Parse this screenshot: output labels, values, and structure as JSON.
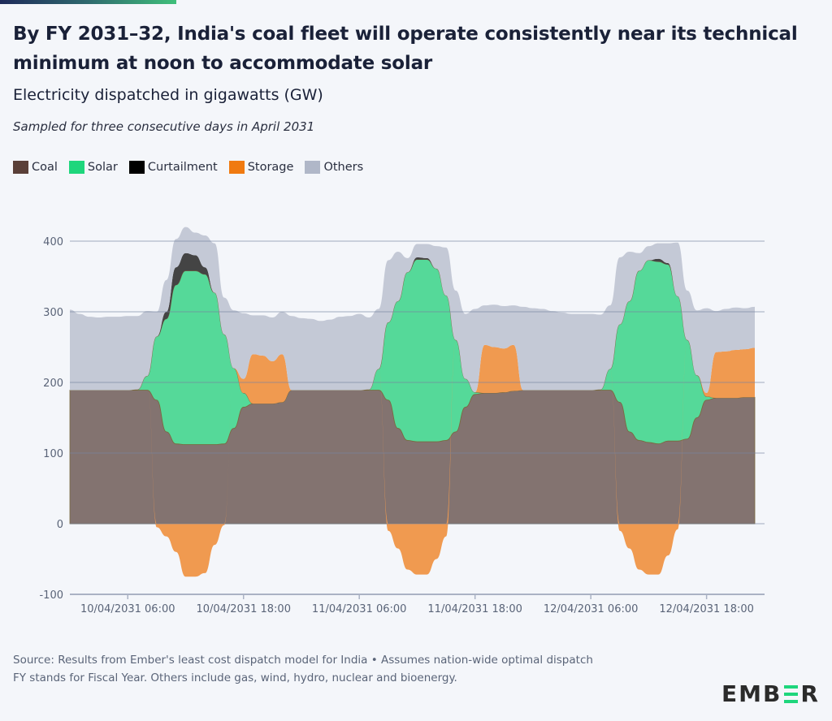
{
  "header": {
    "title": "By FY 2031–32, India's coal fleet will operate consistently near its technical minimum at noon to accommodate solar",
    "subtitle": "Electricity dispatched in gigawatts (GW)",
    "note": "Sampled for three consecutive days in April 2031"
  },
  "legend": [
    {
      "label": "Coal",
      "color": "#5a4038"
    },
    {
      "label": "Solar",
      "color": "#1ed67c"
    },
    {
      "label": "Curtailment",
      "color": "#000000"
    },
    {
      "label": "Storage",
      "color": "#f07a10"
    },
    {
      "label": "Others",
      "color": "#b0b7c8"
    }
  ],
  "chart_data": {
    "type": "area",
    "stacked": true,
    "title": "Electricity dispatched in gigawatts (GW)",
    "xlabel": "",
    "ylabel": "GW",
    "ylim": [
      -100,
      400
    ],
    "yticks": [
      400,
      300,
      200,
      100,
      0,
      -100
    ],
    "grid": true,
    "legend_position": "top-left",
    "x_start": "10/04/2031 00:00",
    "x_step_hours": 1,
    "xticks": [
      {
        "hour": 6,
        "label": "10/04/2031 06:00"
      },
      {
        "hour": 18,
        "label": "10/04/2031 18:00"
      },
      {
        "hour": 30,
        "label": "11/04/2031 06:00"
      },
      {
        "hour": 42,
        "label": "11/04/2031 18:00"
      },
      {
        "hour": 54,
        "label": "12/04/2031 06:00"
      },
      {
        "hour": 66,
        "label": "12/04/2031 18:00"
      }
    ],
    "series": [
      {
        "name": "Coal",
        "color": "#837370",
        "values": [
          189,
          189,
          189,
          189,
          189,
          189,
          189,
          189,
          189,
          175,
          130,
          113,
          112,
          112,
          112,
          112,
          113,
          135,
          165,
          170,
          170,
          170,
          172,
          189,
          189,
          189,
          189,
          189,
          189,
          189,
          189,
          189,
          189,
          175,
          135,
          118,
          116,
          116,
          116,
          118,
          130,
          165,
          183,
          185,
          185,
          186,
          188,
          189,
          189,
          189,
          189,
          189,
          189,
          189,
          189,
          189,
          189,
          172,
          130,
          118,
          115,
          113,
          117,
          117,
          120,
          150,
          175,
          178,
          178,
          178,
          179,
          179
        ]
      },
      {
        "name": "Solar",
        "color": "#55d999",
        "values": [
          0,
          0,
          0,
          0,
          0,
          0,
          0,
          1,
          20,
          90,
          160,
          225,
          246,
          246,
          241,
          215,
          155,
          85,
          20,
          0,
          0,
          0,
          0,
          0,
          0,
          0,
          0,
          0,
          0,
          0,
          0,
          1,
          30,
          110,
          180,
          238,
          258,
          258,
          245,
          205,
          130,
          40,
          3,
          0,
          0,
          0,
          0,
          0,
          0,
          0,
          0,
          0,
          0,
          0,
          0,
          1,
          30,
          110,
          185,
          240,
          258,
          258,
          250,
          205,
          140,
          60,
          5,
          0,
          0,
          0,
          0,
          0
        ]
      },
      {
        "name": "Curtailment",
        "color": "#444444",
        "values": [
          0,
          0,
          0,
          0,
          0,
          0,
          0,
          0,
          0,
          0,
          10,
          25,
          25,
          22,
          10,
          0,
          0,
          0,
          0,
          0,
          0,
          0,
          0,
          0,
          0,
          0,
          0,
          0,
          0,
          0,
          0,
          0,
          0,
          0,
          0,
          0,
          3,
          2,
          0,
          0,
          0,
          0,
          0,
          0,
          0,
          0,
          0,
          0,
          0,
          0,
          0,
          0,
          0,
          0,
          0,
          0,
          0,
          0,
          0,
          0,
          0,
          4,
          2,
          0,
          0,
          0,
          0,
          0,
          0,
          0,
          0,
          0
        ]
      },
      {
        "name": "Storage",
        "color": "#f09a50",
        "values": [
          0,
          0,
          0,
          0,
          0,
          0,
          0,
          0,
          0,
          -5,
          -18,
          -40,
          -75,
          -75,
          -70,
          -30,
          -2,
          0,
          20,
          70,
          68,
          60,
          68,
          0,
          0,
          0,
          0,
          0,
          0,
          0,
          0,
          0,
          0,
          -10,
          -35,
          -65,
          -72,
          -72,
          -50,
          -18,
          0,
          0,
          0,
          68,
          65,
          62,
          65,
          0,
          0,
          0,
          0,
          0,
          0,
          0,
          0,
          0,
          0,
          -10,
          -35,
          -65,
          -72,
          -72,
          -45,
          -8,
          0,
          0,
          5,
          65,
          66,
          68,
          68,
          70
        ]
      },
      {
        "name": "Others",
        "color": "#c4c9d6",
        "values": [
          114,
          108,
          104,
          103,
          104,
          104,
          105,
          104,
          92,
          35,
          45,
          40,
          37,
          32,
          45,
          70,
          52,
          82,
          93,
          55,
          57,
          62,
          60,
          105,
          102,
          101,
          98,
          100,
          104,
          105,
          108,
          102,
          85,
          88,
          70,
          20,
          19,
          20,
          32,
          68,
          70,
          92,
          118,
          56,
          60,
          60,
          56,
          118,
          116,
          115,
          112,
          110,
          108,
          108,
          108,
          106,
          90,
          95,
          70,
          25,
          20,
          22,
          28,
          76,
          70,
          92,
          120,
          58,
          60,
          60,
          58,
          58
        ]
      }
    ]
  },
  "footer": {
    "source": "Source: Results from Ember's least cost dispatch model for India • Assumes nation-wide optimal dispatch",
    "note": "FY stands for Fiscal Year. Others include gas, wind, hydro, nuclear and bioenergy."
  },
  "logo": {
    "left": "EMB",
    "right": "R"
  }
}
